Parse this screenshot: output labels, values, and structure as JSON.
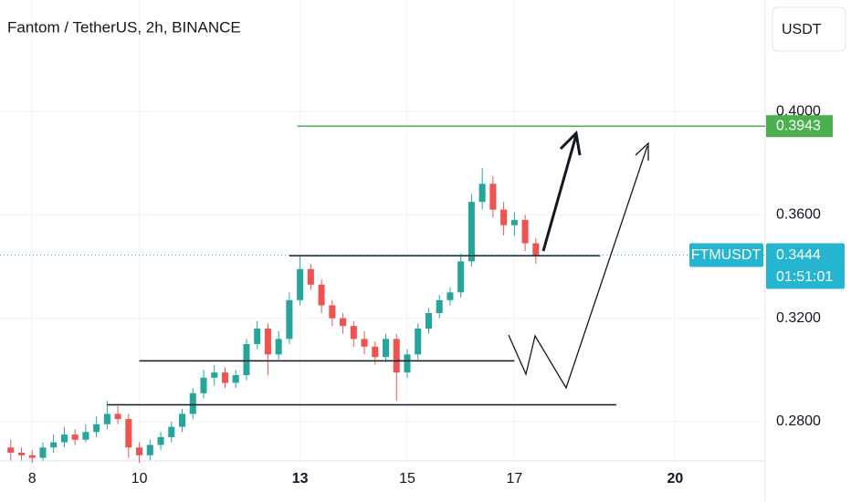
{
  "chart_data": {
    "type": "candlestick",
    "title": "Fantom / TetherUS, 2h, BINANCE",
    "currency": "USDT",
    "symbol_label": "FTMUSDT",
    "countdown": "01:51:01",
    "last_price": {
      "value": 0.3444,
      "label": "0.3444"
    },
    "up_color": "#26a69a",
    "down_color": "#ef5350",
    "x": [
      7.6,
      7.8,
      8.0,
      8.2,
      8.4,
      8.6,
      8.8,
      9.0,
      9.2,
      9.4,
      9.6,
      9.8,
      10.0,
      10.2,
      10.4,
      10.6,
      10.8,
      11.0,
      11.2,
      11.4,
      11.6,
      11.8,
      12.0,
      12.2,
      12.4,
      12.6,
      12.8,
      13.0,
      13.2,
      13.4,
      13.6,
      13.8,
      14.0,
      14.2,
      14.4,
      14.6,
      14.8,
      15.0,
      15.2,
      15.4,
      15.6,
      15.8,
      16.0,
      16.2,
      16.4,
      16.6,
      16.8,
      17.0,
      17.2,
      17.4
    ],
    "open": [
      0.27,
      0.268,
      0.267,
      0.266,
      0.27,
      0.272,
      0.275,
      0.273,
      0.276,
      0.279,
      0.283,
      0.281,
      0.27,
      0.267,
      0.271,
      0.274,
      0.278,
      0.283,
      0.291,
      0.297,
      0.299,
      0.295,
      0.298,
      0.31,
      0.316,
      0.306,
      0.312,
      0.327,
      0.339,
      0.333,
      0.325,
      0.32,
      0.317,
      0.312,
      0.309,
      0.305,
      0.312,
      0.299,
      0.306,
      0.316,
      0.322,
      0.327,
      0.33,
      0.342,
      0.365,
      0.372,
      0.362,
      0.356,
      0.358,
      0.349
    ],
    "high": [
      0.273,
      0.27,
      0.269,
      0.272,
      0.275,
      0.278,
      0.277,
      0.279,
      0.282,
      0.288,
      0.286,
      0.283,
      0.272,
      0.273,
      0.276,
      0.28,
      0.285,
      0.293,
      0.3,
      0.302,
      0.301,
      0.3,
      0.312,
      0.319,
      0.318,
      0.315,
      0.33,
      0.344,
      0.341,
      0.335,
      0.327,
      0.322,
      0.319,
      0.315,
      0.311,
      0.314,
      0.314,
      0.308,
      0.318,
      0.324,
      0.329,
      0.332,
      0.345,
      0.368,
      0.378,
      0.375,
      0.365,
      0.361,
      0.36,
      0.351
    ],
    "low": [
      0.265,
      0.265,
      0.264,
      0.265,
      0.268,
      0.27,
      0.271,
      0.272,
      0.274,
      0.277,
      0.279,
      0.266,
      0.264,
      0.265,
      0.269,
      0.272,
      0.276,
      0.281,
      0.289,
      0.294,
      0.293,
      0.293,
      0.296,
      0.308,
      0.298,
      0.304,
      0.31,
      0.325,
      0.331,
      0.322,
      0.317,
      0.314,
      0.309,
      0.306,
      0.302,
      0.303,
      0.288,
      0.297,
      0.304,
      0.314,
      0.32,
      0.325,
      0.328,
      0.34,
      0.362,
      0.359,
      0.352,
      0.352,
      0.346,
      0.341
    ],
    "close": [
      0.268,
      0.267,
      0.266,
      0.27,
      0.272,
      0.275,
      0.273,
      0.276,
      0.279,
      0.283,
      0.281,
      0.27,
      0.267,
      0.271,
      0.274,
      0.278,
      0.283,
      0.291,
      0.297,
      0.299,
      0.295,
      0.298,
      0.31,
      0.316,
      0.306,
      0.312,
      0.327,
      0.339,
      0.333,
      0.325,
      0.32,
      0.317,
      0.312,
      0.309,
      0.305,
      0.312,
      0.299,
      0.306,
      0.316,
      0.322,
      0.327,
      0.33,
      0.342,
      0.365,
      0.372,
      0.362,
      0.356,
      0.358,
      0.349,
      0.3444
    ],
    "xlim": [
      7.4,
      21.68
    ],
    "ylim": [
      0.2648,
      0.4431
    ],
    "xticks": [
      8,
      10,
      13,
      15,
      17,
      20
    ],
    "xtick_bold": [
      false,
      false,
      true,
      false,
      false,
      true
    ],
    "yticks": [
      {
        "value": 0.28,
        "label": "0.2800"
      },
      {
        "value": 0.32,
        "label": "0.3200"
      },
      {
        "value": 0.36,
        "label": "0.3600"
      },
      {
        "value": 0.4,
        "label": "0.4000"
      }
    ],
    "levels": [
      {
        "value": 0.3943,
        "label": "0.3943",
        "from": 12.95,
        "to": 21.68,
        "color": "#4caf50"
      },
      {
        "value": 0.3442,
        "from": 12.8,
        "to": 18.6,
        "color": "#131722"
      },
      {
        "value": 0.3035,
        "from": 10.0,
        "to": 17.0,
        "color": "#131722"
      },
      {
        "value": 0.2865,
        "from": 9.4,
        "to": 18.9,
        "color": "#131722"
      }
    ]
  }
}
